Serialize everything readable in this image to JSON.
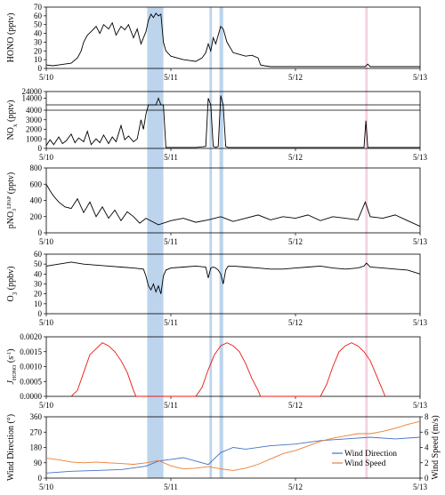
{
  "chart_data": {
    "type": "line",
    "x_range": [
      "5/10",
      "5/13"
    ],
    "x_tick_labels": [
      "5/10",
      "5/11",
      "5/12",
      "5/13"
    ],
    "shaded_periods": [
      {
        "start": 0.81,
        "end": 0.94,
        "color": "#bcd4ec"
      },
      {
        "start": 1.31,
        "end": 1.33,
        "color": "#bcd4ec"
      },
      {
        "start": 1.39,
        "end": 1.42,
        "color": "#bcd4ec"
      },
      {
        "start": 2.56,
        "end": 2.58,
        "color": "#f7cfe3"
      }
    ],
    "panels": [
      {
        "id": "hono",
        "ylabel": "HONO (pptv)",
        "ylim": [
          0,
          70
        ],
        "yticks": [
          "0",
          "10",
          "20",
          "30",
          "40",
          "50",
          "60",
          "70"
        ],
        "series": [
          {
            "color": "#000000",
            "x": [
              0,
              0.05,
              0.1,
              0.15,
              0.2,
              0.25,
              0.28,
              0.3,
              0.33,
              0.36,
              0.4,
              0.43,
              0.46,
              0.5,
              0.53,
              0.56,
              0.6,
              0.63,
              0.66,
              0.7,
              0.73,
              0.76,
              0.8,
              0.82,
              0.84,
              0.86,
              0.88,
              0.9,
              0.92,
              0.94,
              0.96,
              1.0,
              1.05,
              1.1,
              1.15,
              1.2,
              1.25,
              1.28,
              1.3,
              1.32,
              1.34,
              1.36,
              1.38,
              1.4,
              1.42,
              1.45,
              1.5,
              1.55,
              1.6,
              1.65,
              1.7,
              1.72,
              1.75,
              1.8,
              1.85,
              1.9,
              2.0,
              2.2,
              2.4,
              2.56,
              2.58,
              2.6,
              2.8,
              3.0
            ],
            "y": [
              4,
              3,
              4,
              5,
              6,
              12,
              20,
              30,
              38,
              42,
              48,
              40,
              50,
              45,
              52,
              38,
              48,
              44,
              50,
              35,
              45,
              28,
              42,
              55,
              62,
              58,
              63,
              60,
              62,
              30,
              20,
              14,
              12,
              10,
              9,
              8,
              12,
              18,
              28,
              20,
              35,
              28,
              38,
              48,
              45,
              30,
              18,
              16,
              14,
              15,
              12,
              4,
              3,
              2,
              2,
              2,
              2,
              2,
              2,
              2,
              5,
              2,
              2,
              2
            ]
          }
        ]
      },
      {
        "id": "nox",
        "ylabel": "NOx (pptv)",
        "ylim": [
          0,
          24000
        ],
        "yticks": [
          "0",
          "1000",
          "2000",
          "3000",
          "4000",
          "14000",
          "24000"
        ],
        "series": [
          {
            "color": "#000000",
            "x": [
              0,
              0.03,
              0.06,
              0.1,
              0.13,
              0.16,
              0.2,
              0.23,
              0.26,
              0.3,
              0.33,
              0.36,
              0.4,
              0.43,
              0.46,
              0.5,
              0.53,
              0.56,
              0.6,
              0.63,
              0.66,
              0.7,
              0.73,
              0.76,
              0.78,
              0.8,
              0.82,
              0.84,
              0.86,
              0.88,
              0.9,
              0.92,
              0.94,
              0.96,
              1.0,
              1.1,
              1.2,
              1.28,
              1.3,
              1.32,
              1.34,
              1.36,
              1.38,
              1.4,
              1.42,
              1.44,
              1.46,
              1.5,
              1.7,
              2.0,
              2.3,
              2.55,
              2.565,
              2.58,
              2.8,
              3.0
            ],
            "y": [
              300,
              900,
              400,
              1200,
              500,
              800,
              1500,
              600,
              1100,
              700,
              1800,
              400,
              1000,
              600,
              1400,
              500,
              1200,
              700,
              2400,
              900,
              1300,
              700,
              1000,
              3000,
              2000,
              3600,
              9000,
              6000,
              12000,
              8000,
              14000,
              8000,
              6000,
              100,
              100,
              100,
              100,
              200,
              14000,
              6000,
              200,
              100,
              200,
              18000,
              6000,
              200,
              100,
              100,
              100,
              100,
              100,
              100,
              2900,
              100,
              100,
              100
            ]
          }
        ]
      },
      {
        "id": "pno3",
        "ylabel": "pNO3 LPAP (pptv)",
        "ylim": [
          0,
          800
        ],
        "yticks": [
          "0",
          "200",
          "400",
          "600",
          "800"
        ],
        "series": [
          {
            "color": "#000000",
            "x": [
              0,
              0.03,
              0.06,
              0.1,
              0.15,
              0.2,
              0.25,
              0.3,
              0.35,
              0.4,
              0.45,
              0.5,
              0.55,
              0.6,
              0.65,
              0.7,
              0.75,
              0.8,
              0.9,
              1.0,
              1.1,
              1.2,
              1.3,
              1.4,
              1.5,
              1.6,
              1.7,
              1.8,
              1.9,
              2.0,
              2.1,
              2.2,
              2.3,
              2.4,
              2.5,
              2.56,
              2.6,
              2.7,
              2.8,
              2.9,
              3.0
            ],
            "y": [
              600,
              520,
              450,
              380,
              320,
              300,
              420,
              250,
              380,
              200,
              320,
              180,
              280,
              150,
              260,
              200,
              120,
              180,
              100,
              150,
              180,
              130,
              160,
              200,
              140,
              180,
              220,
              160,
              200,
              180,
              220,
              150,
              200,
              180,
              160,
              380,
              200,
              180,
              220,
              150,
              80
            ]
          }
        ]
      },
      {
        "id": "o3",
        "ylabel": "O3 (ppbv)",
        "ylim": [
          0,
          60
        ],
        "yticks": [
          "0",
          "10",
          "20",
          "30",
          "40",
          "50",
          "60"
        ],
        "series": [
          {
            "color": "#000000",
            "x": [
              0,
              0.1,
              0.2,
              0.3,
              0.4,
              0.5,
              0.6,
              0.7,
              0.78,
              0.8,
              0.82,
              0.84,
              0.86,
              0.88,
              0.9,
              0.92,
              0.94,
              0.96,
              1.0,
              1.1,
              1.2,
              1.28,
              1.3,
              1.32,
              1.34,
              1.36,
              1.38,
              1.4,
              1.42,
              1.44,
              1.46,
              1.5,
              1.6,
              1.7,
              1.8,
              1.9,
              2.0,
              2.1,
              2.2,
              2.3,
              2.4,
              2.5,
              2.55,
              2.57,
              2.6,
              2.7,
              2.8,
              2.9,
              3.0
            ],
            "y": [
              48,
              50,
              52,
              50,
              49,
              48,
              47,
              46,
              45,
              38,
              28,
              24,
              30,
              22,
              28,
              20,
              38,
              44,
              46,
              47,
              48,
              47,
              36,
              46,
              47,
              46,
              44,
              40,
              30,
              44,
              48,
              48,
              47,
              46,
              45,
              45,
              46,
              47,
              48,
              46,
              45,
              46,
              48,
              51,
              47,
              46,
              45,
              44,
              40
            ]
          }
        ]
      },
      {
        "id": "jhono",
        "ylabel": "J HONO (s⁻¹)",
        "ylim": [
          0,
          0.002
        ],
        "yticks": [
          "0.0000",
          "0.0005",
          "0.0010",
          "0.0015",
          "0.0020"
        ],
        "series": [
          {
            "color": "#e8180e",
            "x": [
              0.2,
              0.25,
              0.3,
              0.35,
              0.4,
              0.45,
              0.5,
              0.55,
              0.6,
              0.65,
              0.7,
              0.72,
              1.2,
              1.25,
              1.3,
              1.35,
              1.4,
              1.45,
              1.5,
              1.55,
              1.6,
              1.65,
              1.7,
              1.72,
              2.2,
              2.25,
              2.3,
              2.35,
              2.4,
              2.45,
              2.5,
              2.55,
              2.6,
              2.65,
              2.7,
              2.72
            ],
            "y": [
              0,
              0.0002,
              0.0008,
              0.0014,
              0.0016,
              0.0018,
              0.0017,
              0.0015,
              0.0012,
              0.0008,
              0.0002,
              0,
              0,
              0.0003,
              0.0009,
              0.0014,
              0.0017,
              0.0018,
              0.0017,
              0.0015,
              0.0011,
              0.0006,
              0.0002,
              0,
              0,
              0.0004,
              0.001,
              0.0015,
              0.0017,
              0.0018,
              0.0017,
              0.0015,
              0.0012,
              0.0007,
              0.0002,
              0
            ]
          }
        ]
      },
      {
        "id": "wind",
        "ylabel": "Wind Direction (°)",
        "ylabel_right": "Wind Speed (m/s)",
        "ylim": [
          0,
          360
        ],
        "ylim_right": [
          0,
          8
        ],
        "yticks": [
          "0",
          "90",
          "180",
          "270",
          "360"
        ],
        "yticks_right": [
          "0",
          "2",
          "4",
          "6",
          "8"
        ],
        "legend": {
          "position": "bottom-right",
          "entries": [
            "Wind Direction",
            "Wind Speed"
          ]
        },
        "series": [
          {
            "name": "Wind Direction",
            "axis": "left",
            "color": "#4472c4",
            "x": [
              0,
              0.2,
              0.4,
              0.6,
              0.8,
              0.9,
              1.0,
              1.1,
              1.2,
              1.3,
              1.4,
              1.5,
              1.6,
              1.8,
              2.0,
              2.2,
              2.4,
              2.6,
              2.8,
              3.0
            ],
            "y": [
              30,
              40,
              45,
              50,
              70,
              100,
              110,
              120,
              100,
              80,
              150,
              180,
              170,
              190,
              200,
              220,
              230,
              240,
              230,
              240
            ]
          },
          {
            "name": "Wind Speed",
            "axis": "right",
            "color": "#ed7d31",
            "x": [
              0,
              0.1,
              0.2,
              0.3,
              0.4,
              0.5,
              0.6,
              0.7,
              0.8,
              0.9,
              1.0,
              1.1,
              1.2,
              1.3,
              1.4,
              1.5,
              1.6,
              1.7,
              1.8,
              1.9,
              2.0,
              2.1,
              2.2,
              2.3,
              2.4,
              2.5,
              2.6,
              2.7,
              2.8,
              2.9,
              3.0
            ],
            "y": [
              2.6,
              2.4,
              2.1,
              2.0,
              2.1,
              2.0,
              1.9,
              1.8,
              2.0,
              2.3,
              1.6,
              1.2,
              1.3,
              1.5,
              1.2,
              1.0,
              1.3,
              1.8,
              2.5,
              3.2,
              3.6,
              4.2,
              4.8,
              5.2,
              5.5,
              5.8,
              5.8,
              6.1,
              6.5,
              7.0,
              7.4
            ]
          }
        ]
      }
    ]
  }
}
